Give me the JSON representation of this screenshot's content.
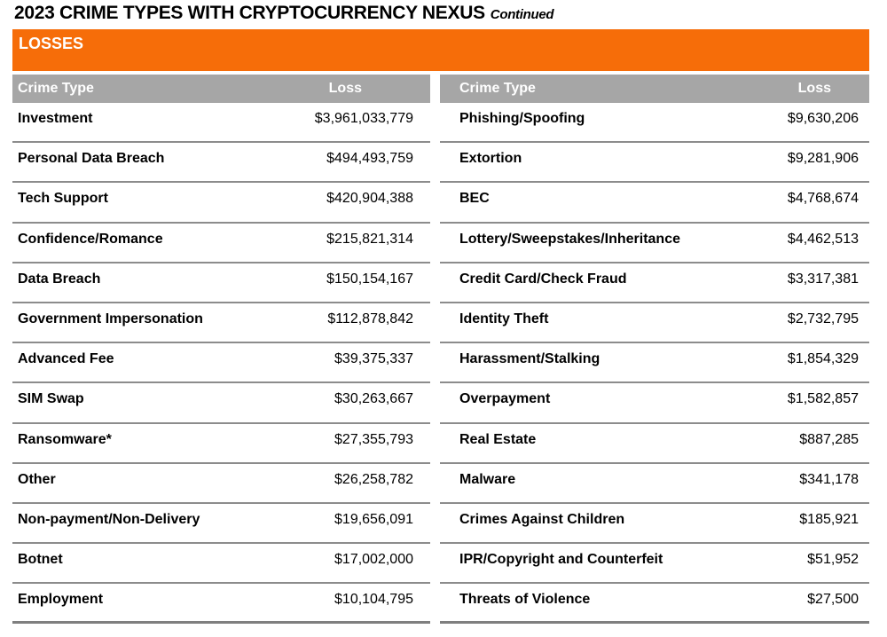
{
  "page": {
    "title": "2023 CRIME TYPES WITH CRYPTOCURRENCY NEXUS",
    "title_suffix": "Continued"
  },
  "section": {
    "label": "LOSSES"
  },
  "table": {
    "left": {
      "headers": {
        "crime_type": "Crime Type",
        "loss": "Loss"
      },
      "rows": [
        {
          "crime_type": "Investment",
          "loss": "$3,961,033,779"
        },
        {
          "crime_type": "Personal Data Breach",
          "loss": "$494,493,759"
        },
        {
          "crime_type": "Tech Support",
          "loss": "$420,904,388"
        },
        {
          "crime_type": "Confidence/Romance",
          "loss": "$215,821,314"
        },
        {
          "crime_type": "Data Breach",
          "loss": "$150,154,167"
        },
        {
          "crime_type": "Government Impersonation",
          "loss": "$112,878,842"
        },
        {
          "crime_type": "Advanced Fee",
          "loss": "$39,375,337"
        },
        {
          "crime_type": "SIM Swap",
          "loss": "$30,263,667"
        },
        {
          "crime_type": "Ransomware*",
          "loss": "$27,355,793"
        },
        {
          "crime_type": "Other",
          "loss": "$26,258,782"
        },
        {
          "crime_type": "Non-payment/Non-Delivery",
          "loss": "$19,656,091"
        },
        {
          "crime_type": "Botnet",
          "loss": "$17,002,000"
        },
        {
          "crime_type": "Employment",
          "loss": "$10,104,795"
        }
      ]
    },
    "right": {
      "headers": {
        "crime_type": "Crime Type",
        "loss": "Loss"
      },
      "rows": [
        {
          "crime_type": "Phishing/Spoofing",
          "loss": "$9,630,206"
        },
        {
          "crime_type": "Extortion",
          "loss": "$9,281,906"
        },
        {
          "crime_type": "BEC",
          "loss": "$4,768,674"
        },
        {
          "crime_type": "Lottery/Sweepstakes/Inheritance",
          "loss": "$4,462,513"
        },
        {
          "crime_type": "Credit Card/Check Fraud",
          "loss": "$3,317,381"
        },
        {
          "crime_type": "Identity Theft",
          "loss": "$2,732,795"
        },
        {
          "crime_type": "Harassment/Stalking",
          "loss": "$1,854,329"
        },
        {
          "crime_type": "Overpayment",
          "loss": "$1,582,857"
        },
        {
          "crime_type": "Real Estate",
          "loss": "$887,285"
        },
        {
          "crime_type": "Malware",
          "loss": "$341,178"
        },
        {
          "crime_type": "Crimes Against Children",
          "loss": "$185,921"
        },
        {
          "crime_type": "IPR/Copyright and Counterfeit",
          "loss": "$51,952"
        },
        {
          "crime_type": "Threats of Violence",
          "loss": "$27,500"
        }
      ]
    }
  },
  "colors": {
    "accent_orange": "#F66D09",
    "header_gray": "#A6A6A6",
    "row_border": "#8C8C8C",
    "bottom_border": "#7F7F7F"
  }
}
